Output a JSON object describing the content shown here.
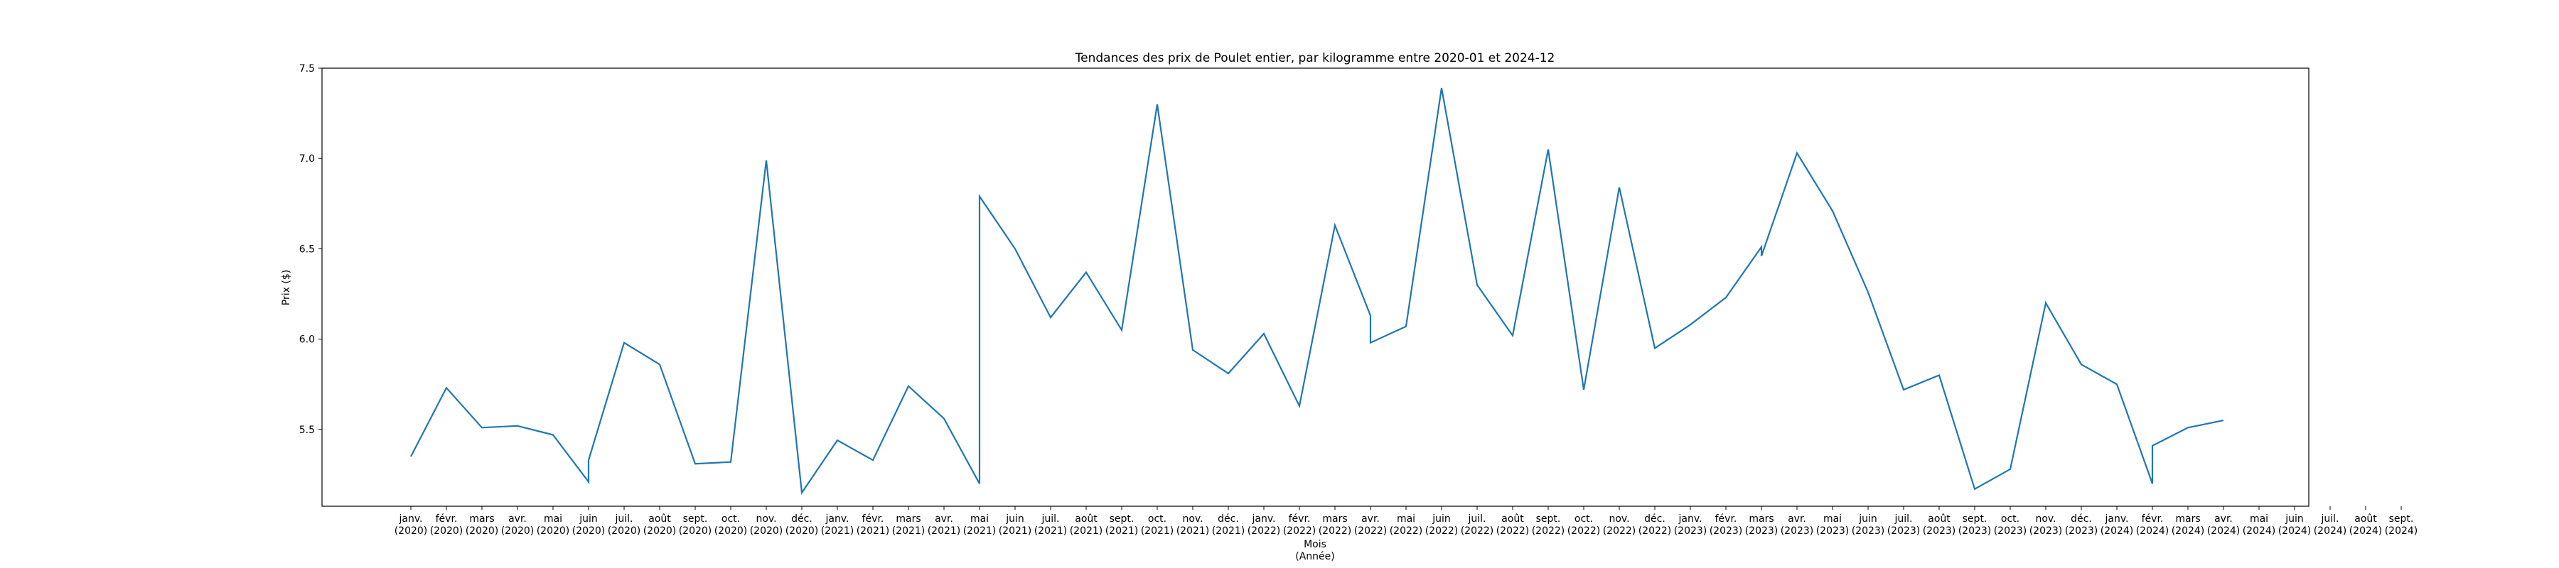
{
  "chart_data": {
    "type": "line",
    "title": "Tendances des prix de Poulet entier, par kilogramme entre 2020-01 et 2024-12",
    "xlabel": "Mois\n(Année)",
    "ylabel": "Prix ($)",
    "ylim": [
      5.075,
      7.5
    ],
    "yticks": [
      5.5,
      6.0,
      6.5,
      7.0,
      7.5
    ],
    "ytick_labels": [
      "5.5",
      "6.0",
      "6.5",
      "7.0",
      "7.5"
    ],
    "grid": false,
    "legend": "none",
    "color": "#1f77b4",
    "xtick_labels": [
      [
        "janv.",
        "(2020)"
      ],
      [
        "févr.",
        "(2020)"
      ],
      [
        "mars",
        "(2020)"
      ],
      [
        "avr.",
        "(2020)"
      ],
      [
        "mai",
        "(2020)"
      ],
      [
        "juin",
        "(2020)"
      ],
      [
        "juil.",
        "(2020)"
      ],
      [
        "août",
        "(2020)"
      ],
      [
        "sept.",
        "(2020)"
      ],
      [
        "oct.",
        "(2020)"
      ],
      [
        "nov.",
        "(2020)"
      ],
      [
        "déc.",
        "(2020)"
      ],
      [
        "janv.",
        "(2021)"
      ],
      [
        "févr.",
        "(2021)"
      ],
      [
        "mars",
        "(2021)"
      ],
      [
        "avr.",
        "(2021)"
      ],
      [
        "mai",
        "(2021)"
      ],
      [
        "juin",
        "(2021)"
      ],
      [
        "juil.",
        "(2021)"
      ],
      [
        "août",
        "(2021)"
      ],
      [
        "sept.",
        "(2021)"
      ],
      [
        "oct.",
        "(2021)"
      ],
      [
        "nov.",
        "(2021)"
      ],
      [
        "déc.",
        "(2021)"
      ],
      [
        "janv.",
        "(2022)"
      ],
      [
        "févr.",
        "(2022)"
      ],
      [
        "mars",
        "(2022)"
      ],
      [
        "avr.",
        "(2022)"
      ],
      [
        "mai",
        "(2022)"
      ],
      [
        "juin",
        "(2022)"
      ],
      [
        "juil.",
        "(2022)"
      ],
      [
        "août",
        "(2022)"
      ],
      [
        "sept.",
        "(2022)"
      ],
      [
        "oct.",
        "(2022)"
      ],
      [
        "nov.",
        "(2022)"
      ],
      [
        "déc.",
        "(2022)"
      ],
      [
        "janv.",
        "(2023)"
      ],
      [
        "févr.",
        "(2023)"
      ],
      [
        "mars",
        "(2023)"
      ],
      [
        "avr.",
        "(2023)"
      ],
      [
        "mai",
        "(2023)"
      ],
      [
        "juin",
        "(2023)"
      ],
      [
        "juil.",
        "(2023)"
      ],
      [
        "août",
        "(2023)"
      ],
      [
        "sept.",
        "(2023)"
      ],
      [
        "oct.",
        "(2023)"
      ],
      [
        "nov.",
        "(2023)"
      ],
      [
        "déc.",
        "(2023)"
      ],
      [
        "janv.",
        "(2024)"
      ],
      [
        "févr.",
        "(2024)"
      ],
      [
        "mars",
        "(2024)"
      ],
      [
        "avr.",
        "(2024)"
      ],
      [
        "mai",
        "(2024)"
      ],
      [
        "juin",
        "(2024)"
      ],
      [
        "juil.",
        "(2024)"
      ],
      [
        "août",
        "(2024)"
      ],
      [
        "sept.",
        "(2024)"
      ]
    ],
    "series": [
      {
        "points": [
          [
            "2020-01",
            5.35
          ],
          [
            "2020-02",
            5.73
          ],
          [
            "2020-03",
            5.51
          ],
          [
            "2020-04",
            5.52
          ],
          [
            "2020-05",
            5.47
          ],
          [
            "2020-06",
            5.21
          ],
          [
            "2020-06",
            5.33
          ],
          [
            "2020-07",
            5.98
          ],
          [
            "2020-08",
            5.86
          ],
          [
            "2020-09",
            5.31
          ],
          [
            "2020-10",
            5.32
          ],
          [
            "2020-11",
            6.99
          ],
          [
            "2020-12",
            5.15
          ],
          [
            "2021-01",
            5.44
          ],
          [
            "2021-02",
            5.33
          ],
          [
            "2021-03",
            5.74
          ],
          [
            "2021-04",
            5.56
          ],
          [
            "2021-05",
            5.2
          ],
          [
            "2021-05",
            6.79
          ],
          [
            "2021-06",
            6.5
          ],
          [
            "2021-07",
            6.12
          ],
          [
            "2021-08",
            6.37
          ],
          [
            "2021-09",
            6.05
          ],
          [
            "2021-10",
            7.3
          ],
          [
            "2021-11",
            5.94
          ],
          [
            "2021-12",
            5.81
          ],
          [
            "2022-01",
            6.03
          ],
          [
            "2022-02",
            5.63
          ],
          [
            "2022-03",
            6.63
          ],
          [
            "2022-04",
            6.13
          ],
          [
            "2022-04",
            5.98
          ],
          [
            "2022-05",
            6.07
          ],
          [
            "2022-06",
            7.39
          ],
          [
            "2022-07",
            6.3
          ],
          [
            "2022-08",
            6.02
          ],
          [
            "2022-09",
            7.05
          ],
          [
            "2022-10",
            5.72
          ],
          [
            "2022-11",
            6.84
          ],
          [
            "2022-12",
            5.95
          ],
          [
            "2023-01",
            6.08
          ],
          [
            "2023-02",
            6.23
          ],
          [
            "2023-03",
            6.51
          ],
          [
            "2023-03",
            6.46
          ],
          [
            "2023-04",
            7.03
          ],
          [
            "2023-05",
            6.71
          ],
          [
            "2023-06",
            6.26
          ],
          [
            "2023-07",
            5.72
          ],
          [
            "2023-08",
            5.8
          ],
          [
            "2023-09",
            5.17
          ],
          [
            "2023-10",
            5.28
          ],
          [
            "2023-11",
            6.2
          ],
          [
            "2023-12",
            5.86
          ],
          [
            "2024-01",
            5.75
          ],
          [
            "2024-02",
            5.2
          ],
          [
            "2024-02",
            5.41
          ],
          [
            "2024-03",
            5.51
          ],
          [
            "2024-04",
            5.55
          ]
        ]
      }
    ]
  }
}
